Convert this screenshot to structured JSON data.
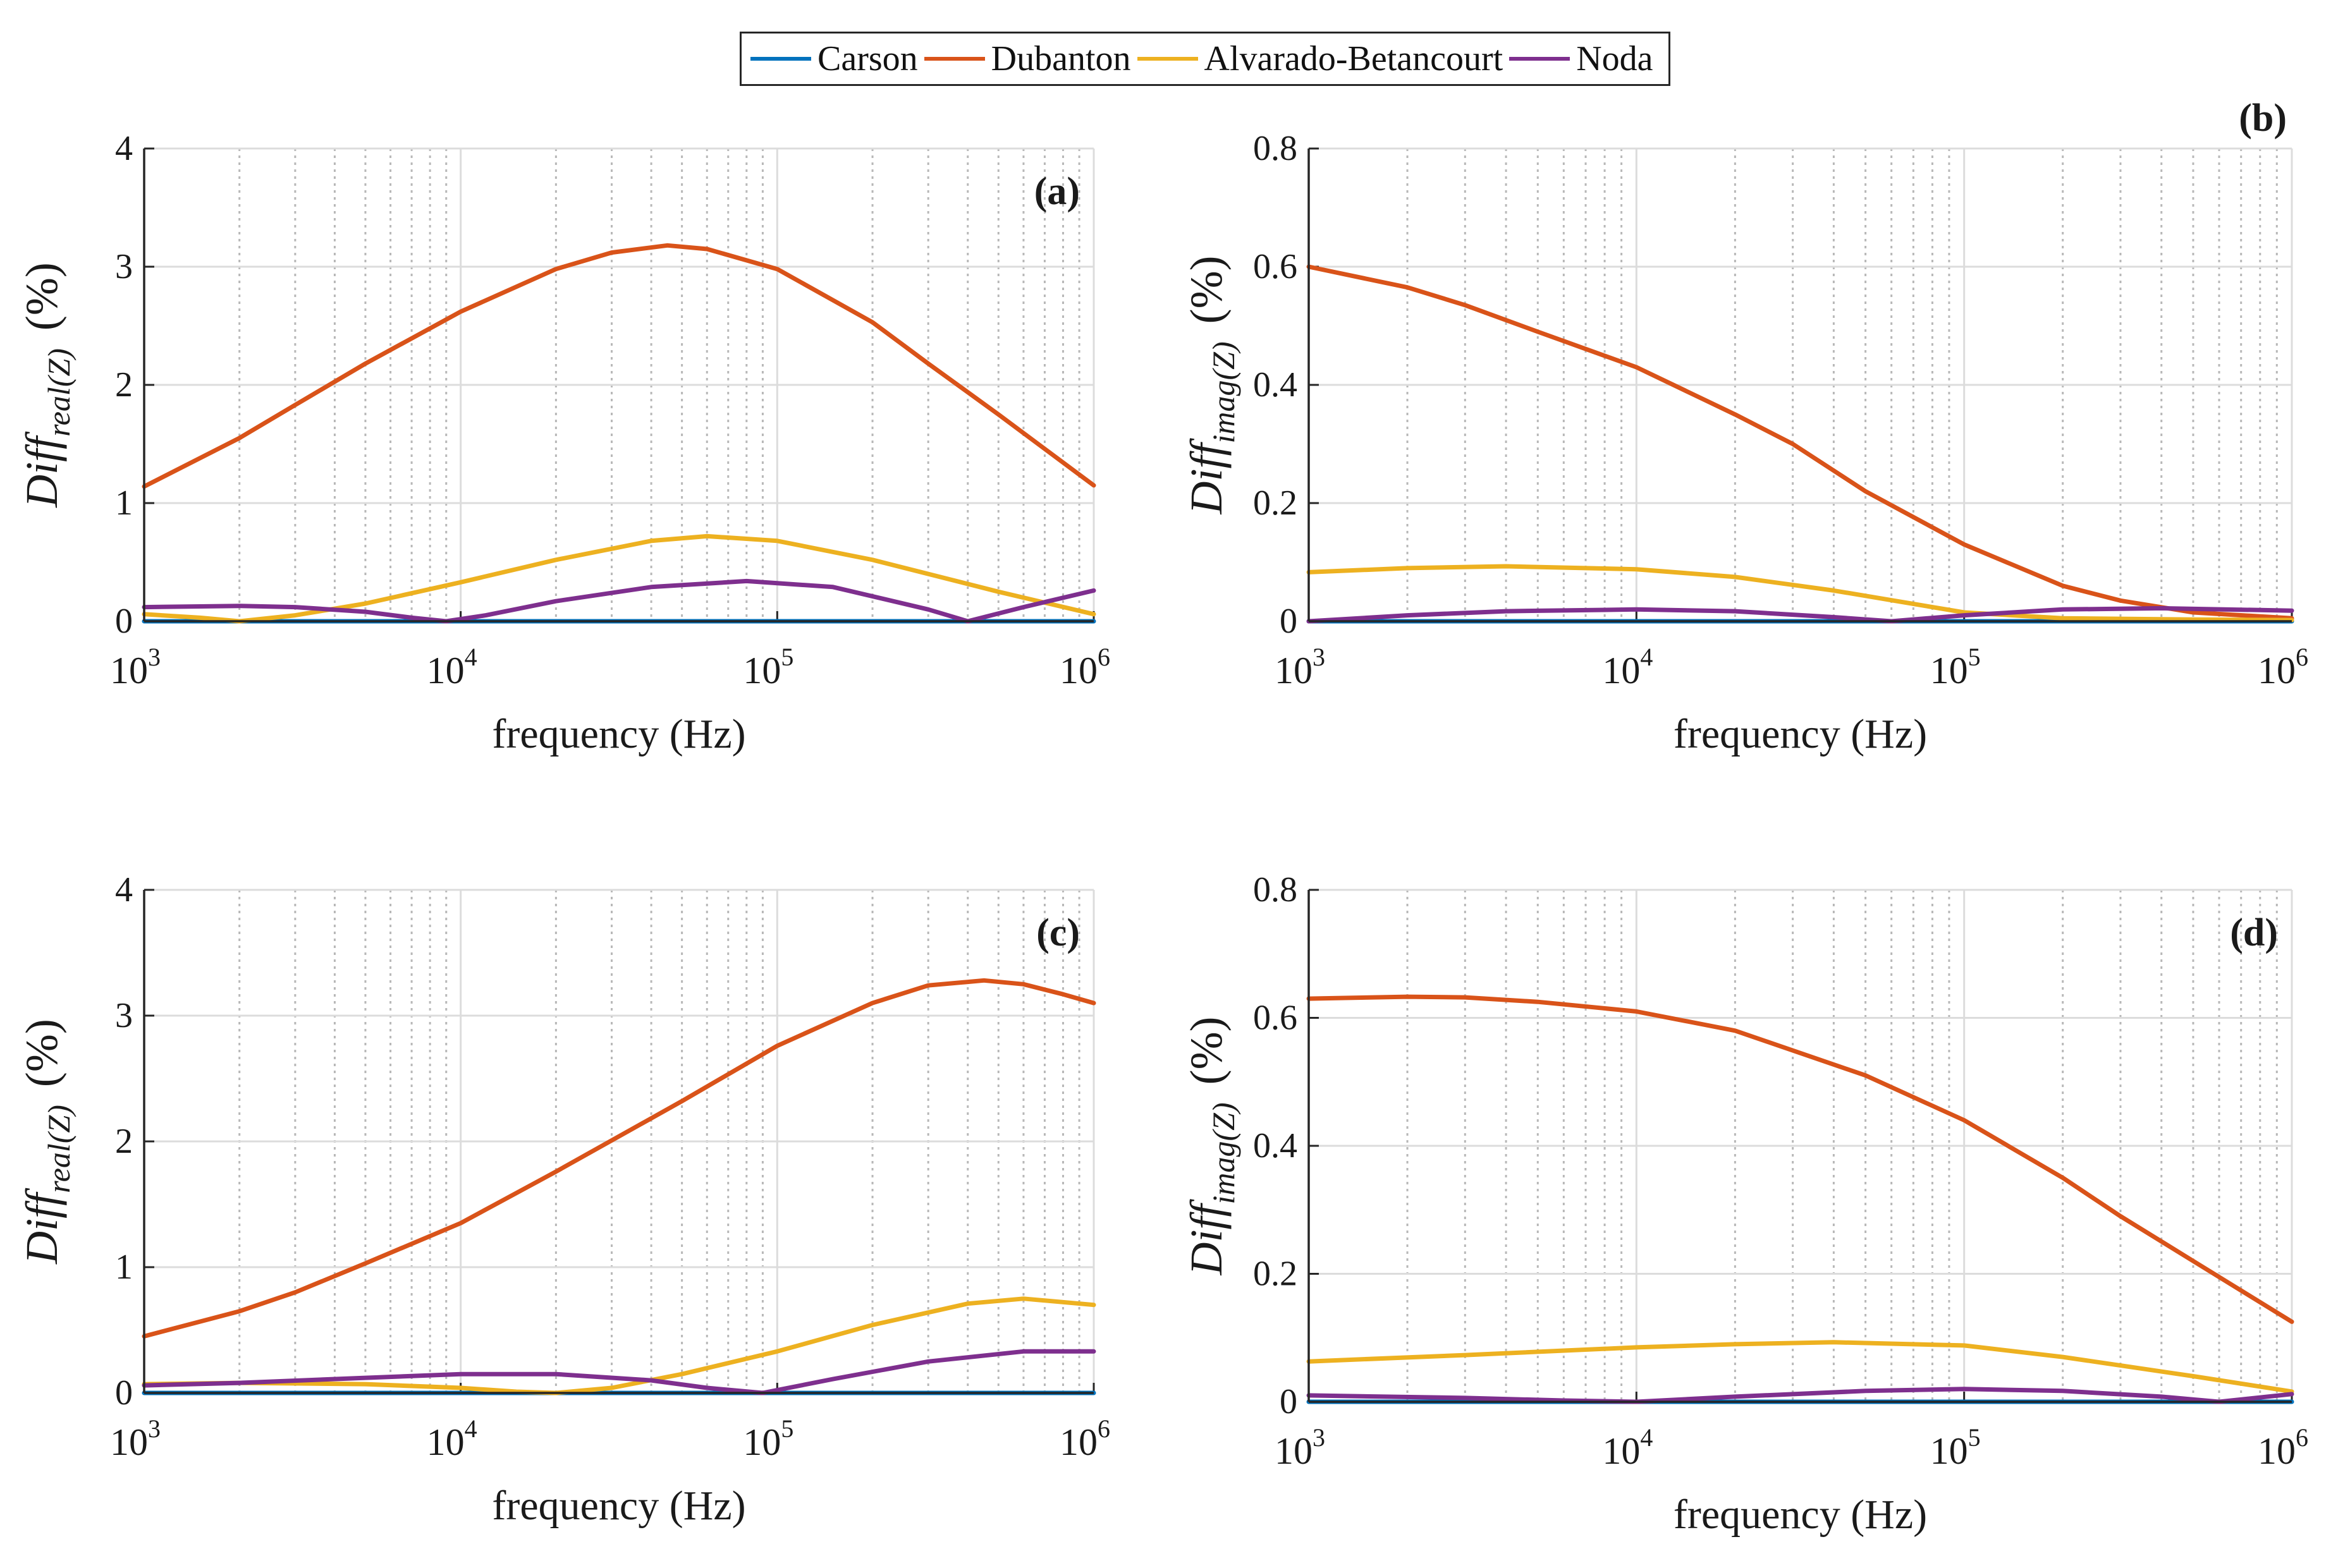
{
  "legend": {
    "entries": [
      {
        "name": "Carson",
        "color": "#0072BD"
      },
      {
        "name": "Dubanton",
        "color": "#D95319"
      },
      {
        "name": "Alvarado-Betancourt",
        "color": "#EDB120"
      },
      {
        "name": "Noda",
        "color": "#7E2F8E"
      }
    ]
  },
  "chart_data": [
    {
      "type": "line",
      "panel_label": "(a)",
      "xlabel": "frequency (Hz)",
      "ylabel_main": "Diff",
      "ylabel_sub": "real(Z)",
      "ylabel_unit": "(%)",
      "xscale": "log",
      "xlim": [
        1000,
        1000000
      ],
      "ylim": [
        0,
        4
      ],
      "yticks": [
        "0",
        "1",
        "2",
        "3",
        "4"
      ],
      "xtick_base": "10",
      "xtick_exponents": [
        "3",
        "4",
        "5",
        "6"
      ],
      "label_position": "top-right-inside",
      "series": [
        {
          "name": "Carson",
          "x": [
            1000,
            1000000
          ],
          "y": [
            0,
            0
          ]
        },
        {
          "name": "Dubanton",
          "x": [
            1000,
            2000,
            3000,
            5000,
            10000,
            20000,
            30000,
            45000,
            60000,
            100000,
            200000,
            300000,
            500000,
            1000000
          ],
          "y": [
            1.14,
            1.55,
            1.83,
            2.18,
            2.62,
            2.98,
            3.12,
            3.18,
            3.15,
            2.98,
            2.53,
            2.18,
            1.75,
            1.15
          ]
        },
        {
          "name": "Alvarado-Betancourt",
          "x": [
            1000,
            1500,
            2000,
            3000,
            5000,
            10000,
            20000,
            40000,
            60000,
            100000,
            200000,
            500000,
            1000000
          ],
          "y": [
            0.06,
            0.03,
            0.0,
            0.05,
            0.15,
            0.33,
            0.52,
            0.68,
            0.72,
            0.68,
            0.52,
            0.25,
            0.06
          ]
        },
        {
          "name": "Noda",
          "x": [
            1000,
            2000,
            3000,
            5000,
            7000,
            9000,
            12000,
            20000,
            40000,
            80000,
            150000,
            300000,
            400000,
            600000,
            1000000
          ],
          "y": [
            0.12,
            0.13,
            0.12,
            0.08,
            0.03,
            0.0,
            0.05,
            0.17,
            0.29,
            0.34,
            0.29,
            0.1,
            0.0,
            0.12,
            0.26
          ]
        }
      ]
    },
    {
      "type": "line",
      "panel_label": "(b)",
      "xlabel": "frequency (Hz)",
      "ylabel_main": "Diff",
      "ylabel_sub": "imag(Z)",
      "ylabel_unit": "(%)",
      "xscale": "log",
      "xlim": [
        1000,
        1000000
      ],
      "ylim": [
        0,
        0.8
      ],
      "yticks": [
        "0",
        "0.2",
        "0.4",
        "0.6",
        "0.8"
      ],
      "xtick_base": "10",
      "xtick_exponents": [
        "3",
        "4",
        "5",
        "6"
      ],
      "label_position": "top-right-outside",
      "series": [
        {
          "name": "Carson",
          "x": [
            1000,
            1000000
          ],
          "y": [
            0,
            0
          ]
        },
        {
          "name": "Dubanton",
          "x": [
            1000,
            2000,
            3000,
            5000,
            10000,
            20000,
            30000,
            50000,
            100000,
            200000,
            300000,
            500000,
            1000000
          ],
          "y": [
            0.6,
            0.565,
            0.535,
            0.49,
            0.43,
            0.35,
            0.3,
            0.22,
            0.13,
            0.06,
            0.035,
            0.015,
            0.005
          ]
        },
        {
          "name": "Alvarado-Betancourt",
          "x": [
            1000,
            2000,
            4000,
            10000,
            20000,
            40000,
            100000,
            200000,
            500000,
            1000000
          ],
          "y": [
            0.083,
            0.09,
            0.093,
            0.088,
            0.075,
            0.052,
            0.015,
            0.005,
            0.003,
            0.002
          ]
        },
        {
          "name": "Noda",
          "x": [
            1000,
            2000,
            4000,
            10000,
            20000,
            40000,
            60000,
            100000,
            200000,
            400000,
            1000000
          ],
          "y": [
            0.0,
            0.01,
            0.017,
            0.02,
            0.017,
            0.007,
            0.0,
            0.01,
            0.02,
            0.022,
            0.018
          ]
        }
      ]
    },
    {
      "type": "line",
      "panel_label": "(c)",
      "xlabel": "frequency (Hz)",
      "ylabel_main": "Diff",
      "ylabel_sub": "real(Z)",
      "ylabel_unit": "(%)",
      "xscale": "log",
      "xlim": [
        1000,
        1000000
      ],
      "ylim": [
        0,
        4
      ],
      "yticks": [
        "0",
        "1",
        "2",
        "3",
        "4"
      ],
      "xtick_base": "10",
      "xtick_exponents": [
        "3",
        "4",
        "5",
        "6"
      ],
      "label_position": "top-right-inside",
      "series": [
        {
          "name": "Carson",
          "x": [
            1000,
            1000000
          ],
          "y": [
            0,
            0
          ]
        },
        {
          "name": "Dubanton",
          "x": [
            1000,
            2000,
            3000,
            5000,
            10000,
            20000,
            50000,
            100000,
            200000,
            300000,
            450000,
            600000,
            800000,
            1000000
          ],
          "y": [
            0.45,
            0.65,
            0.8,
            1.03,
            1.35,
            1.76,
            2.32,
            2.76,
            3.1,
            3.24,
            3.28,
            3.25,
            3.17,
            3.1
          ]
        },
        {
          "name": "Alvarado-Betancourt",
          "x": [
            1000,
            2000,
            5000,
            10000,
            15000,
            20000,
            30000,
            50000,
            100000,
            200000,
            400000,
            600000,
            1000000
          ],
          "y": [
            0.07,
            0.08,
            0.07,
            0.04,
            0.01,
            0.0,
            0.04,
            0.15,
            0.33,
            0.54,
            0.71,
            0.75,
            0.7
          ]
        },
        {
          "name": "Noda",
          "x": [
            1000,
            2000,
            5000,
            10000,
            20000,
            40000,
            60000,
            90000,
            150000,
            300000,
            600000,
            1000000
          ],
          "y": [
            0.06,
            0.08,
            0.12,
            0.15,
            0.15,
            0.1,
            0.04,
            0.0,
            0.11,
            0.25,
            0.33,
            0.33
          ]
        }
      ]
    },
    {
      "type": "line",
      "panel_label": "(d)",
      "xlabel": "frequency (Hz)",
      "ylabel_main": "Diff",
      "ylabel_sub": "imag(Z)",
      "ylabel_unit": "(%)",
      "xscale": "log",
      "xlim": [
        1000,
        1000000
      ],
      "ylim": [
        0,
        0.8
      ],
      "yticks": [
        "0",
        "0.2",
        "0.4",
        "0.6",
        "0.8"
      ],
      "xtick_base": "10",
      "xtick_exponents": [
        "3",
        "4",
        "5",
        "6"
      ],
      "label_position": "top-right-inside",
      "series": [
        {
          "name": "Carson",
          "x": [
            1000,
            1000000
          ],
          "y": [
            0,
            0
          ]
        },
        {
          "name": "Dubanton",
          "x": [
            1000,
            2000,
            3000,
            5000,
            10000,
            20000,
            50000,
            100000,
            200000,
            300000,
            500000,
            1000000
          ],
          "y": [
            0.63,
            0.633,
            0.632,
            0.625,
            0.61,
            0.58,
            0.51,
            0.44,
            0.35,
            0.29,
            0.22,
            0.125
          ]
        },
        {
          "name": "Alvarado-Betancourt",
          "x": [
            1000,
            3000,
            10000,
            20000,
            40000,
            100000,
            200000,
            500000,
            1000000
          ],
          "y": [
            0.063,
            0.073,
            0.085,
            0.09,
            0.093,
            0.088,
            0.07,
            0.04,
            0.016
          ]
        },
        {
          "name": "Noda",
          "x": [
            1000,
            3000,
            6000,
            10000,
            20000,
            50000,
            100000,
            200000,
            400000,
            600000,
            1000000
          ],
          "y": [
            0.01,
            0.006,
            0.002,
            0.0,
            0.008,
            0.017,
            0.02,
            0.017,
            0.008,
            0.0,
            0.012
          ]
        }
      ]
    }
  ]
}
